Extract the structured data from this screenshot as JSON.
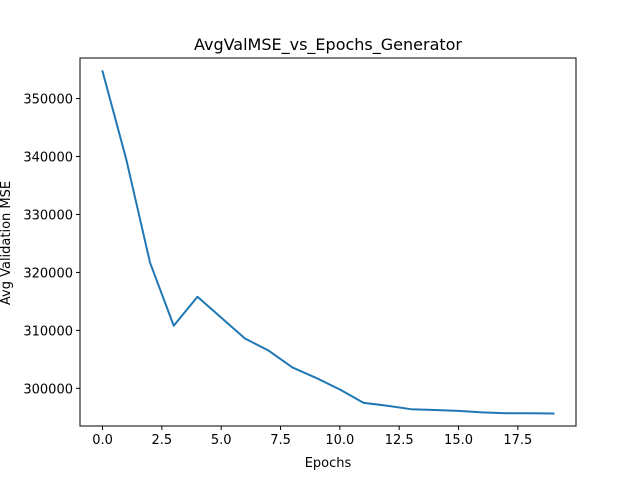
{
  "chart_data": {
    "type": "line",
    "title": "AvgValMSE_vs_Epochs_Generator",
    "xlabel": "Epochs",
    "ylabel": "Avg Validation MSE",
    "xlim": [
      -0.95,
      19.95
    ],
    "ylim": [
      293500,
      357000
    ],
    "xticks": [
      0,
      2.5,
      5,
      7.5,
      10,
      12.5,
      15,
      17.5
    ],
    "xtick_labels": [
      "0.0",
      "2.5",
      "5.0",
      "7.5",
      "10.0",
      "12.5",
      "15.0",
      "17.5"
    ],
    "yticks": [
      300000,
      310000,
      320000,
      330000,
      340000,
      350000
    ],
    "ytick_labels": [
      "300000",
      "310000",
      "320000",
      "330000",
      "340000",
      "350000"
    ],
    "grid": false,
    "series": [
      {
        "color": "#1f77b4",
        "x": [
          0,
          1,
          2,
          3,
          4,
          5,
          6,
          7,
          8,
          9,
          10,
          11,
          12,
          13,
          14,
          15,
          16,
          17,
          18,
          19
        ],
        "values": [
          354700,
          339500,
          321700,
          310800,
          315800,
          312200,
          308600,
          306500,
          303600,
          301800,
          299800,
          297500,
          297000,
          296400,
          296250,
          296100,
          295850,
          295700,
          295700,
          295650
        ]
      }
    ]
  }
}
